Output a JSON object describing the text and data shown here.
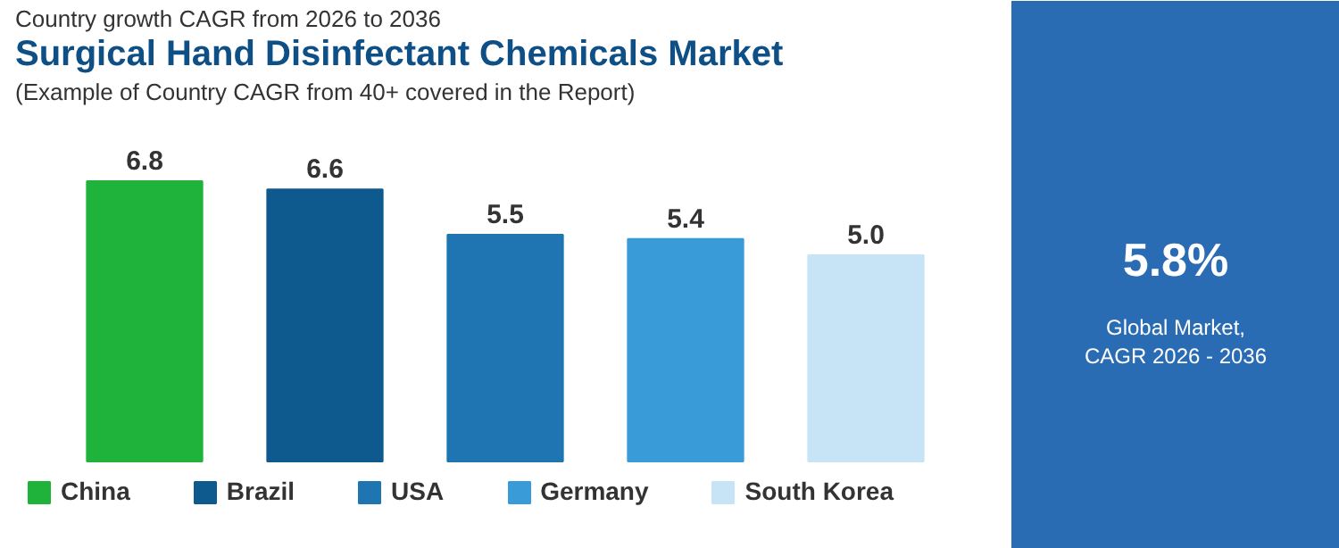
{
  "chart_data": [
    {
      "type": "bar",
      "title": "Surgical Hand Disinfectant Chemicals Market",
      "subtitle": "(Example of Country CAGR from 40+ covered in the Report)",
      "annotations": [
        "Country growth CAGR from 2026 to 2036"
      ],
      "categories": [
        null,
        null,
        null,
        null,
        null
      ],
      "series": [
        {
          "name": "China",
          "color": "#1fb33c",
          "values": [
            6.8,
            null,
            null,
            null,
            null
          ],
          "value_labels": [
            "6.8",
            null,
            null,
            null,
            null
          ]
        },
        {
          "name": "Brazil",
          "color": "#0e5a8e",
          "values": [
            null,
            6.6,
            null,
            null,
            null
          ],
          "value_labels": [
            null,
            "6.6",
            null,
            null,
            null
          ]
        },
        {
          "name": "USA",
          "color": "#1f74b2",
          "values": [
            null,
            null,
            5.5,
            null,
            null
          ],
          "value_labels": [
            null,
            null,
            "5.5",
            null,
            null
          ]
        },
        {
          "name": "Germany",
          "color": "#3a9bd9",
          "values": [
            null,
            null,
            null,
            5.4,
            null
          ],
          "value_labels": [
            null,
            null,
            null,
            "5.4",
            null
          ]
        },
        {
          "name": "South Korea",
          "color": "#c6e4f6",
          "values": [
            null,
            null,
            null,
            null,
            5.0
          ],
          "value_labels": [
            null,
            null,
            null,
            null,
            "5.0"
          ]
        }
      ],
      "stacked": true,
      "legend": "bottom"
    },
    {
      "type": "other",
      "title": "5.8%",
      "annotations": [
        "Global Market,",
        "CAGR 2026 - 2036"
      ]
    }
  ]
}
